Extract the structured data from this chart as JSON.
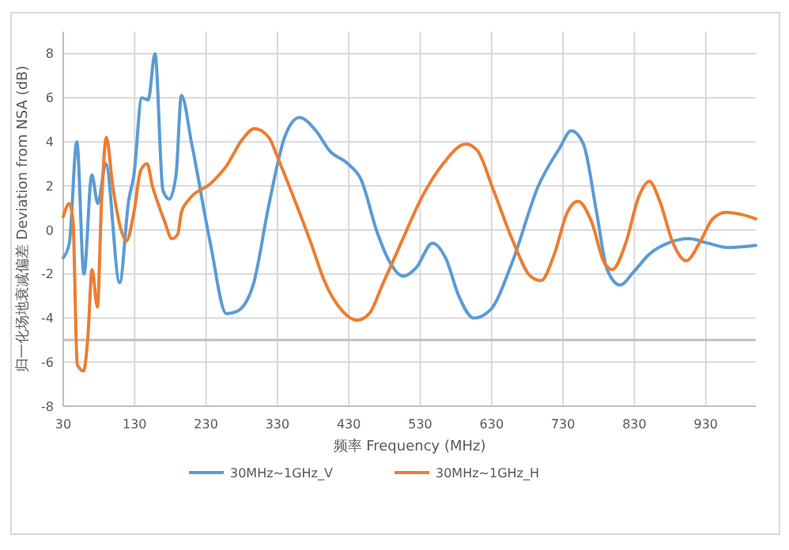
{
  "chart_data": {
    "type": "line",
    "xlabel": "频率 Frequency (MHz)",
    "ylabel": "归一化场地衰减偏差  Deviation from NSA (dB)",
    "xlim": [
      30,
      1000
    ],
    "xticks": [
      30,
      130,
      230,
      330,
      430,
      530,
      630,
      730,
      830,
      930
    ],
    "ylim": [
      -8,
      9
    ],
    "yticks": [
      -8,
      -6,
      -4,
      -2,
      0,
      2,
      4,
      6,
      8
    ],
    "grid": true,
    "legend": "bottom",
    "marker": "none",
    "line_style": "solid",
    "ref_lines": [
      {
        "axis": "y",
        "value": -5,
        "label": null,
        "color": "#bfbfbf"
      }
    ],
    "series": [
      {
        "name": "30MHz~1GHz_V",
        "color": "#5b9bd5",
        "x": [
          30,
          38.5,
          49,
          59,
          70,
          78.5,
          89.6,
          109,
          121.5,
          129,
          140,
          149,
          158.5,
          169.6,
          178.5,
          188,
          195.5,
          210,
          236,
          258.5,
          273,
          296,
          317.8,
          340,
          360.7,
          384,
          402.9,
          428.8,
          447,
          469.6,
          488,
          506,
          524.8,
          547,
          565.9,
          584,
          605,
          629,
          658.5,
          695.5,
          725,
          741.5,
          758.5,
          777,
          791.8,
          810,
          829,
          851,
          877,
          906.6,
          932.5,
          962,
          1000
        ],
        "values": [
          -1.26,
          -0.6,
          4.0,
          -2.0,
          2.5,
          1.2,
          3.0,
          -2.4,
          1.3,
          2.5,
          6.0,
          5.9,
          8.0,
          1.8,
          1.4,
          2.5,
          6.1,
          3.9,
          -0.6,
          -3.8,
          -3.7,
          -2.5,
          1.1,
          4.2,
          5.1,
          4.5,
          3.6,
          3.0,
          2.3,
          -0.1,
          -1.5,
          -2.1,
          -1.7,
          -0.6,
          -1.3,
          -3.0,
          -4.0,
          -3.6,
          -1.5,
          2.0,
          3.7,
          4.5,
          3.9,
          0.8,
          -1.8,
          -2.5,
          -1.9,
          -1.1,
          -0.6,
          -0.4,
          -0.6,
          -0.8,
          -0.7
        ]
      },
      {
        "name": "30MHz~1GHz_H",
        "color": "#ed7d31",
        "x": [
          30,
          38.5,
          43.7,
          49.6,
          58.5,
          64.4,
          70.4,
          77.8,
          83.7,
          90.4,
          99.3,
          111.9,
          118.5,
          129,
          138.5,
          147.4,
          154.8,
          160.7,
          171.8,
          182.2,
          190.4,
          195.5,
          206.7,
          236.3,
          258.5,
          280.7,
          297.8,
          317.8,
          332.6,
          354.8,
          377,
          395.5,
          421.5,
          441.5,
          458.5,
          477,
          503,
          532.6,
          562,
          594,
          610,
          632.6,
          658.5,
          684.4,
          699,
          717.8,
          736,
          751,
          769.6,
          788,
          799,
          817.8,
          836,
          851,
          865.5,
          884,
          902.6,
          921,
          939.6,
          958,
          980,
          1000
        ],
        "values": [
          0.6,
          1.2,
          0.4,
          -6.1,
          -6.4,
          -4.9,
          -1.8,
          -3.5,
          1.3,
          4.2,
          2.0,
          -0.1,
          -0.5,
          0.8,
          2.7,
          3.0,
          2.0,
          1.4,
          0.4,
          -0.4,
          -0.2,
          0.8,
          1.4,
          2.1,
          2.9,
          4.1,
          4.6,
          4.2,
          3.1,
          1.3,
          -0.6,
          -2.3,
          -3.7,
          -4.1,
          -3.8,
          -2.5,
          -0.6,
          1.5,
          3.0,
          3.9,
          3.6,
          1.8,
          -0.4,
          -2.1,
          -2.3,
          -1.1,
          0.8,
          1.3,
          0.4,
          -1.5,
          -1.8,
          -0.6,
          1.5,
          2.2,
          1.3,
          -0.6,
          -1.4,
          -0.6,
          0.5,
          0.8,
          0.7,
          0.5
        ]
      }
    ]
  }
}
